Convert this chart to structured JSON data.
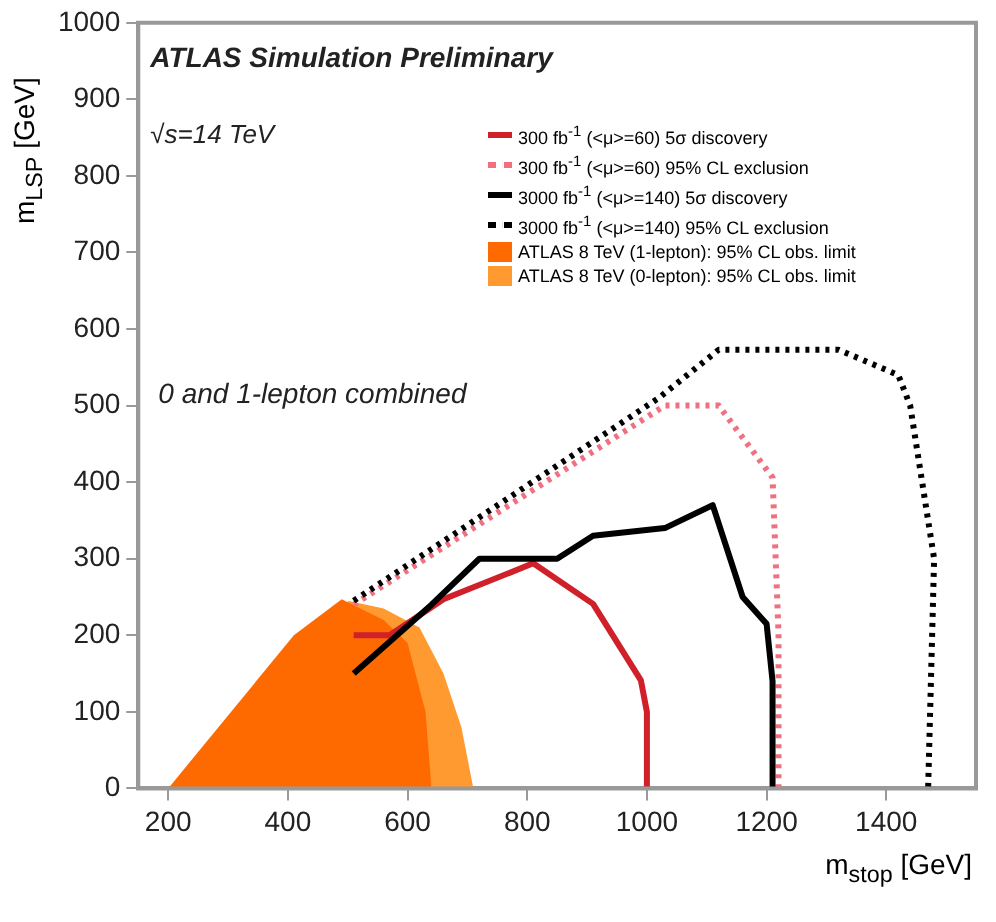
{
  "chart_data": {
    "type": "line",
    "xlabel": "m$_{stop}$ [GeV]",
    "ylabel": "m$_{LSP}$ [GeV]",
    "annotations": [
      "ATLAS Simulation Preliminary",
      "√s=14 TeV",
      "0 and 1-lepton combined"
    ],
    "xlim": [
      150,
      1550
    ],
    "xticks": [
      200,
      400,
      600,
      800,
      1000,
      1200,
      1400
    ],
    "ylim": [
      0,
      1000
    ],
    "yticks": [
      0,
      100,
      200,
      300,
      400,
      500,
      600,
      700,
      800,
      900,
      1000
    ],
    "grid": false,
    "legend": "top right",
    "marker": "none",
    "series": [
      {
        "name": "ATLAS 8 TeV (0-lepton): 95% CL obs. limit",
        "type": "area",
        "color": "#ff9a30",
        "x": [
          500,
          560,
          620,
          660,
          690,
          710
        ],
        "values": [
          245,
          235,
          210,
          150,
          80,
          0
        ]
      },
      {
        "name": "ATLAS 8 TeV (1-lepton): 95% CL obs. limit",
        "type": "area",
        "color": "#ff6a00",
        "x": [
          200,
          410,
          490,
          560,
          600,
          630,
          640
        ],
        "values": [
          0,
          200,
          247,
          220,
          190,
          100,
          0
        ]
      },
      {
        "name": "300 fb$^{-1}$ (<μ>=60) 5σ discovery",
        "type": "line",
        "line_style": "solid",
        "color": "#d0202a",
        "x": [
          510,
          570,
          660,
          810,
          910,
          990,
          1000,
          1000
        ],
        "values": [
          200,
          200,
          247,
          294,
          241,
          141,
          100,
          0
        ]
      },
      {
        "name": "300 fb$^{-1}$ (<μ>=60) 95% CL exclusion",
        "type": "line",
        "line_style": "dotted",
        "color": "#f07080",
        "x": [
          510,
          1030,
          1120,
          1210,
          1220,
          1220
        ],
        "values": [
          240,
          500,
          500,
          406,
          202,
          0
        ]
      },
      {
        "name": "3000 fb$^{-1}$ (<μ>=140) 5σ discovery",
        "type": "line",
        "line_style": "solid",
        "color": "#000000",
        "x": [
          510,
          640,
          720,
          850,
          910,
          1030,
          1110,
          1160,
          1200,
          1210,
          1210
        ],
        "values": [
          150,
          240,
          300,
          300,
          330,
          340,
          370,
          250,
          215,
          140,
          0
        ]
      },
      {
        "name": "3000 fb$^{-1}$ (<μ>=140) 95% CL exclusion",
        "type": "line",
        "line_style": "dotted",
        "color": "#000000",
        "x": [
          510,
          1020,
          1120,
          1320,
          1420,
          1440,
          1480,
          1470
        ],
        "values": [
          245,
          510,
          573,
          573,
          540,
          500,
          300,
          0
        ]
      }
    ]
  }
}
